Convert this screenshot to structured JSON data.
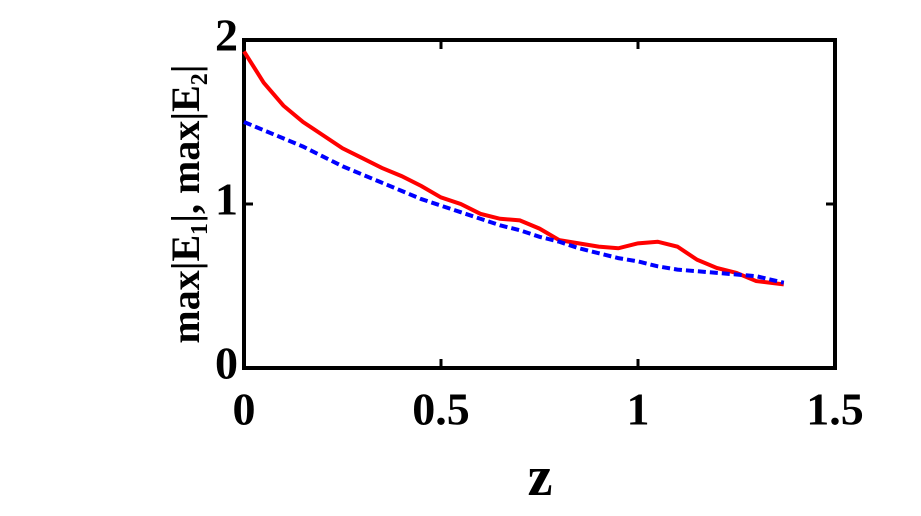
{
  "chart_data": {
    "type": "line",
    "x_label": "z",
    "y_label": "max|E₁|,  max|E₂|",
    "x": [
      0,
      0.05,
      0.1,
      0.15,
      0.2,
      0.25,
      0.3,
      0.35,
      0.4,
      0.45,
      0.5,
      0.55,
      0.6,
      0.65,
      0.7,
      0.75,
      0.8,
      0.85,
      0.9,
      0.95,
      1.0,
      1.05,
      1.1,
      1.15,
      1.2,
      1.25,
      1.3,
      1.37
    ],
    "series": [
      {
        "color": "#ff0000",
        "dash": "solid",
        "values": [
          1.93,
          1.74,
          1.6,
          1.5,
          1.42,
          1.34,
          1.28,
          1.22,
          1.17,
          1.11,
          1.04,
          1.0,
          0.94,
          0.91,
          0.9,
          0.85,
          0.78,
          0.76,
          0.74,
          0.73,
          0.76,
          0.77,
          0.74,
          0.66,
          0.61,
          0.58,
          0.53,
          0.51
        ]
      },
      {
        "color": "#0000ff",
        "dash": "dashed",
        "values": [
          1.5,
          1.45,
          1.4,
          1.35,
          1.29,
          1.23,
          1.18,
          1.13,
          1.08,
          1.03,
          0.99,
          0.95,
          0.91,
          0.87,
          0.84,
          0.8,
          0.77,
          0.73,
          0.7,
          0.67,
          0.65,
          0.62,
          0.6,
          0.59,
          0.58,
          0.57,
          0.56,
          0.52
        ]
      }
    ],
    "xlim": [
      0,
      1.5
    ],
    "xticks": [
      0,
      0.5,
      1,
      1.5
    ],
    "ylim": [
      0,
      2
    ],
    "yticks": [
      0,
      1,
      2
    ]
  }
}
